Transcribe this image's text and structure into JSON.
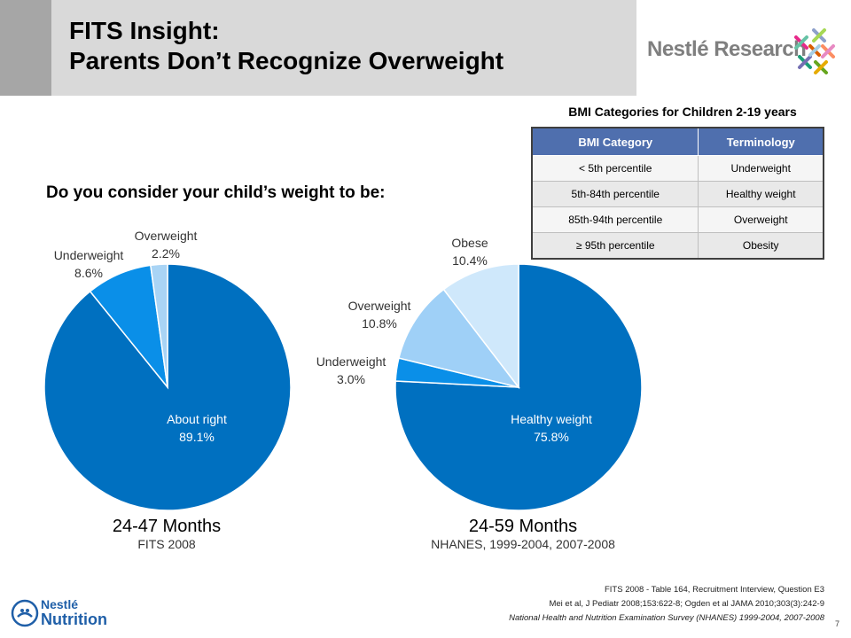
{
  "header": {
    "title_line1": "FITS Insight:",
    "title_line2": "Parents Don’t Recognize Overweight"
  },
  "logos": {
    "research": "Nestlé Research",
    "nutrition_line1": "Nestlé",
    "nutrition_line2": "Nutrition"
  },
  "bmi_table": {
    "title": "BMI Categories for Children 2-19 years",
    "headers": [
      "BMI Category",
      "Terminology"
    ],
    "rows": [
      [
        "< 5th percentile",
        "Underweight"
      ],
      [
        "5th-84th percentile",
        "Healthy weight"
      ],
      [
        "85th-94th percentile",
        "Overweight"
      ],
      [
        "≥ 95th percentile",
        "Obesity"
      ]
    ]
  },
  "question": "Do you consider your child’s weight to be:",
  "chart_data": [
    {
      "type": "pie",
      "title": "24-47 Months",
      "subtitle": "FITS 2008",
      "categories": [
        "About right",
        "Underweight",
        "Overweight"
      ],
      "values": [
        89.1,
        8.6,
        2.2
      ],
      "value_labels": [
        "89.1%",
        "8.6%",
        "2.2%"
      ],
      "colors": [
        "#0070c0",
        "#0a8fe8",
        "#a9d4f5"
      ]
    },
    {
      "type": "pie",
      "title": "24-59 Months",
      "subtitle": "NHANES, 1999-2004, 2007-2008",
      "categories": [
        "Healthy weight",
        "Underweight",
        "Overweight",
        "Obese"
      ],
      "values": [
        75.8,
        3.0,
        10.8,
        10.4
      ],
      "value_labels": [
        "75.8%",
        "3.0%",
        "10.8%",
        "10.4%"
      ],
      "colors": [
        "#0070c0",
        "#0a8fe8",
        "#9fd0f7",
        "#cfe8fb"
      ]
    }
  ],
  "footnotes": {
    "line1": "FITS 2008 - Table 164, Recruitment Interview, Question E3",
    "line2": "Mei et al, J Pediatr 2008;153:622-8; Ogden et al JAMA 2010;303(3):242-9",
    "line3": "National Health and Nutrition Examination Survey (NHANES) 1999-2004, 2007-2008"
  },
  "page_number": "7"
}
